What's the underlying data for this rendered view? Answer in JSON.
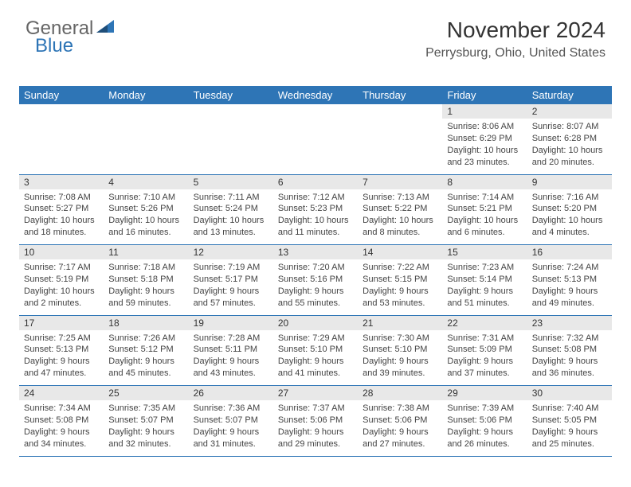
{
  "logo": {
    "text1": "General",
    "text2": "Blue"
  },
  "header": {
    "title": "November 2024",
    "location": "Perrysburg, Ohio, United States"
  },
  "style": {
    "header_bg": "#2e75b6",
    "header_fg": "#ffffff",
    "daynum_bg": "#e8e8e8",
    "row_border": "#2e75b6",
    "body_fontsize": 11,
    "header_fontsize": 13,
    "title_fontsize": 28,
    "location_fontsize": 16
  },
  "weekdays": [
    "Sunday",
    "Monday",
    "Tuesday",
    "Wednesday",
    "Thursday",
    "Friday",
    "Saturday"
  ],
  "weeks": [
    [
      null,
      null,
      null,
      null,
      null,
      {
        "n": "1",
        "sr": "8:06 AM",
        "ss": "6:29 PM",
        "dl": "10 hours and 23 minutes."
      },
      {
        "n": "2",
        "sr": "8:07 AM",
        "ss": "6:28 PM",
        "dl": "10 hours and 20 minutes."
      }
    ],
    [
      {
        "n": "3",
        "sr": "7:08 AM",
        "ss": "5:27 PM",
        "dl": "10 hours and 18 minutes."
      },
      {
        "n": "4",
        "sr": "7:10 AM",
        "ss": "5:26 PM",
        "dl": "10 hours and 16 minutes."
      },
      {
        "n": "5",
        "sr": "7:11 AM",
        "ss": "5:24 PM",
        "dl": "10 hours and 13 minutes."
      },
      {
        "n": "6",
        "sr": "7:12 AM",
        "ss": "5:23 PM",
        "dl": "10 hours and 11 minutes."
      },
      {
        "n": "7",
        "sr": "7:13 AM",
        "ss": "5:22 PM",
        "dl": "10 hours and 8 minutes."
      },
      {
        "n": "8",
        "sr": "7:14 AM",
        "ss": "5:21 PM",
        "dl": "10 hours and 6 minutes."
      },
      {
        "n": "9",
        "sr": "7:16 AM",
        "ss": "5:20 PM",
        "dl": "10 hours and 4 minutes."
      }
    ],
    [
      {
        "n": "10",
        "sr": "7:17 AM",
        "ss": "5:19 PM",
        "dl": "10 hours and 2 minutes."
      },
      {
        "n": "11",
        "sr": "7:18 AM",
        "ss": "5:18 PM",
        "dl": "9 hours and 59 minutes."
      },
      {
        "n": "12",
        "sr": "7:19 AM",
        "ss": "5:17 PM",
        "dl": "9 hours and 57 minutes."
      },
      {
        "n": "13",
        "sr": "7:20 AM",
        "ss": "5:16 PM",
        "dl": "9 hours and 55 minutes."
      },
      {
        "n": "14",
        "sr": "7:22 AM",
        "ss": "5:15 PM",
        "dl": "9 hours and 53 minutes."
      },
      {
        "n": "15",
        "sr": "7:23 AM",
        "ss": "5:14 PM",
        "dl": "9 hours and 51 minutes."
      },
      {
        "n": "16",
        "sr": "7:24 AM",
        "ss": "5:13 PM",
        "dl": "9 hours and 49 minutes."
      }
    ],
    [
      {
        "n": "17",
        "sr": "7:25 AM",
        "ss": "5:13 PM",
        "dl": "9 hours and 47 minutes."
      },
      {
        "n": "18",
        "sr": "7:26 AM",
        "ss": "5:12 PM",
        "dl": "9 hours and 45 minutes."
      },
      {
        "n": "19",
        "sr": "7:28 AM",
        "ss": "5:11 PM",
        "dl": "9 hours and 43 minutes."
      },
      {
        "n": "20",
        "sr": "7:29 AM",
        "ss": "5:10 PM",
        "dl": "9 hours and 41 minutes."
      },
      {
        "n": "21",
        "sr": "7:30 AM",
        "ss": "5:10 PM",
        "dl": "9 hours and 39 minutes."
      },
      {
        "n": "22",
        "sr": "7:31 AM",
        "ss": "5:09 PM",
        "dl": "9 hours and 37 minutes."
      },
      {
        "n": "23",
        "sr": "7:32 AM",
        "ss": "5:08 PM",
        "dl": "9 hours and 36 minutes."
      }
    ],
    [
      {
        "n": "24",
        "sr": "7:34 AM",
        "ss": "5:08 PM",
        "dl": "9 hours and 34 minutes."
      },
      {
        "n": "25",
        "sr": "7:35 AM",
        "ss": "5:07 PM",
        "dl": "9 hours and 32 minutes."
      },
      {
        "n": "26",
        "sr": "7:36 AM",
        "ss": "5:07 PM",
        "dl": "9 hours and 31 minutes."
      },
      {
        "n": "27",
        "sr": "7:37 AM",
        "ss": "5:06 PM",
        "dl": "9 hours and 29 minutes."
      },
      {
        "n": "28",
        "sr": "7:38 AM",
        "ss": "5:06 PM",
        "dl": "9 hours and 27 minutes."
      },
      {
        "n": "29",
        "sr": "7:39 AM",
        "ss": "5:06 PM",
        "dl": "9 hours and 26 minutes."
      },
      {
        "n": "30",
        "sr": "7:40 AM",
        "ss": "5:05 PM",
        "dl": "9 hours and 25 minutes."
      }
    ]
  ],
  "labels": {
    "sunrise": "Sunrise:",
    "sunset": "Sunset:",
    "daylight": "Daylight:"
  }
}
